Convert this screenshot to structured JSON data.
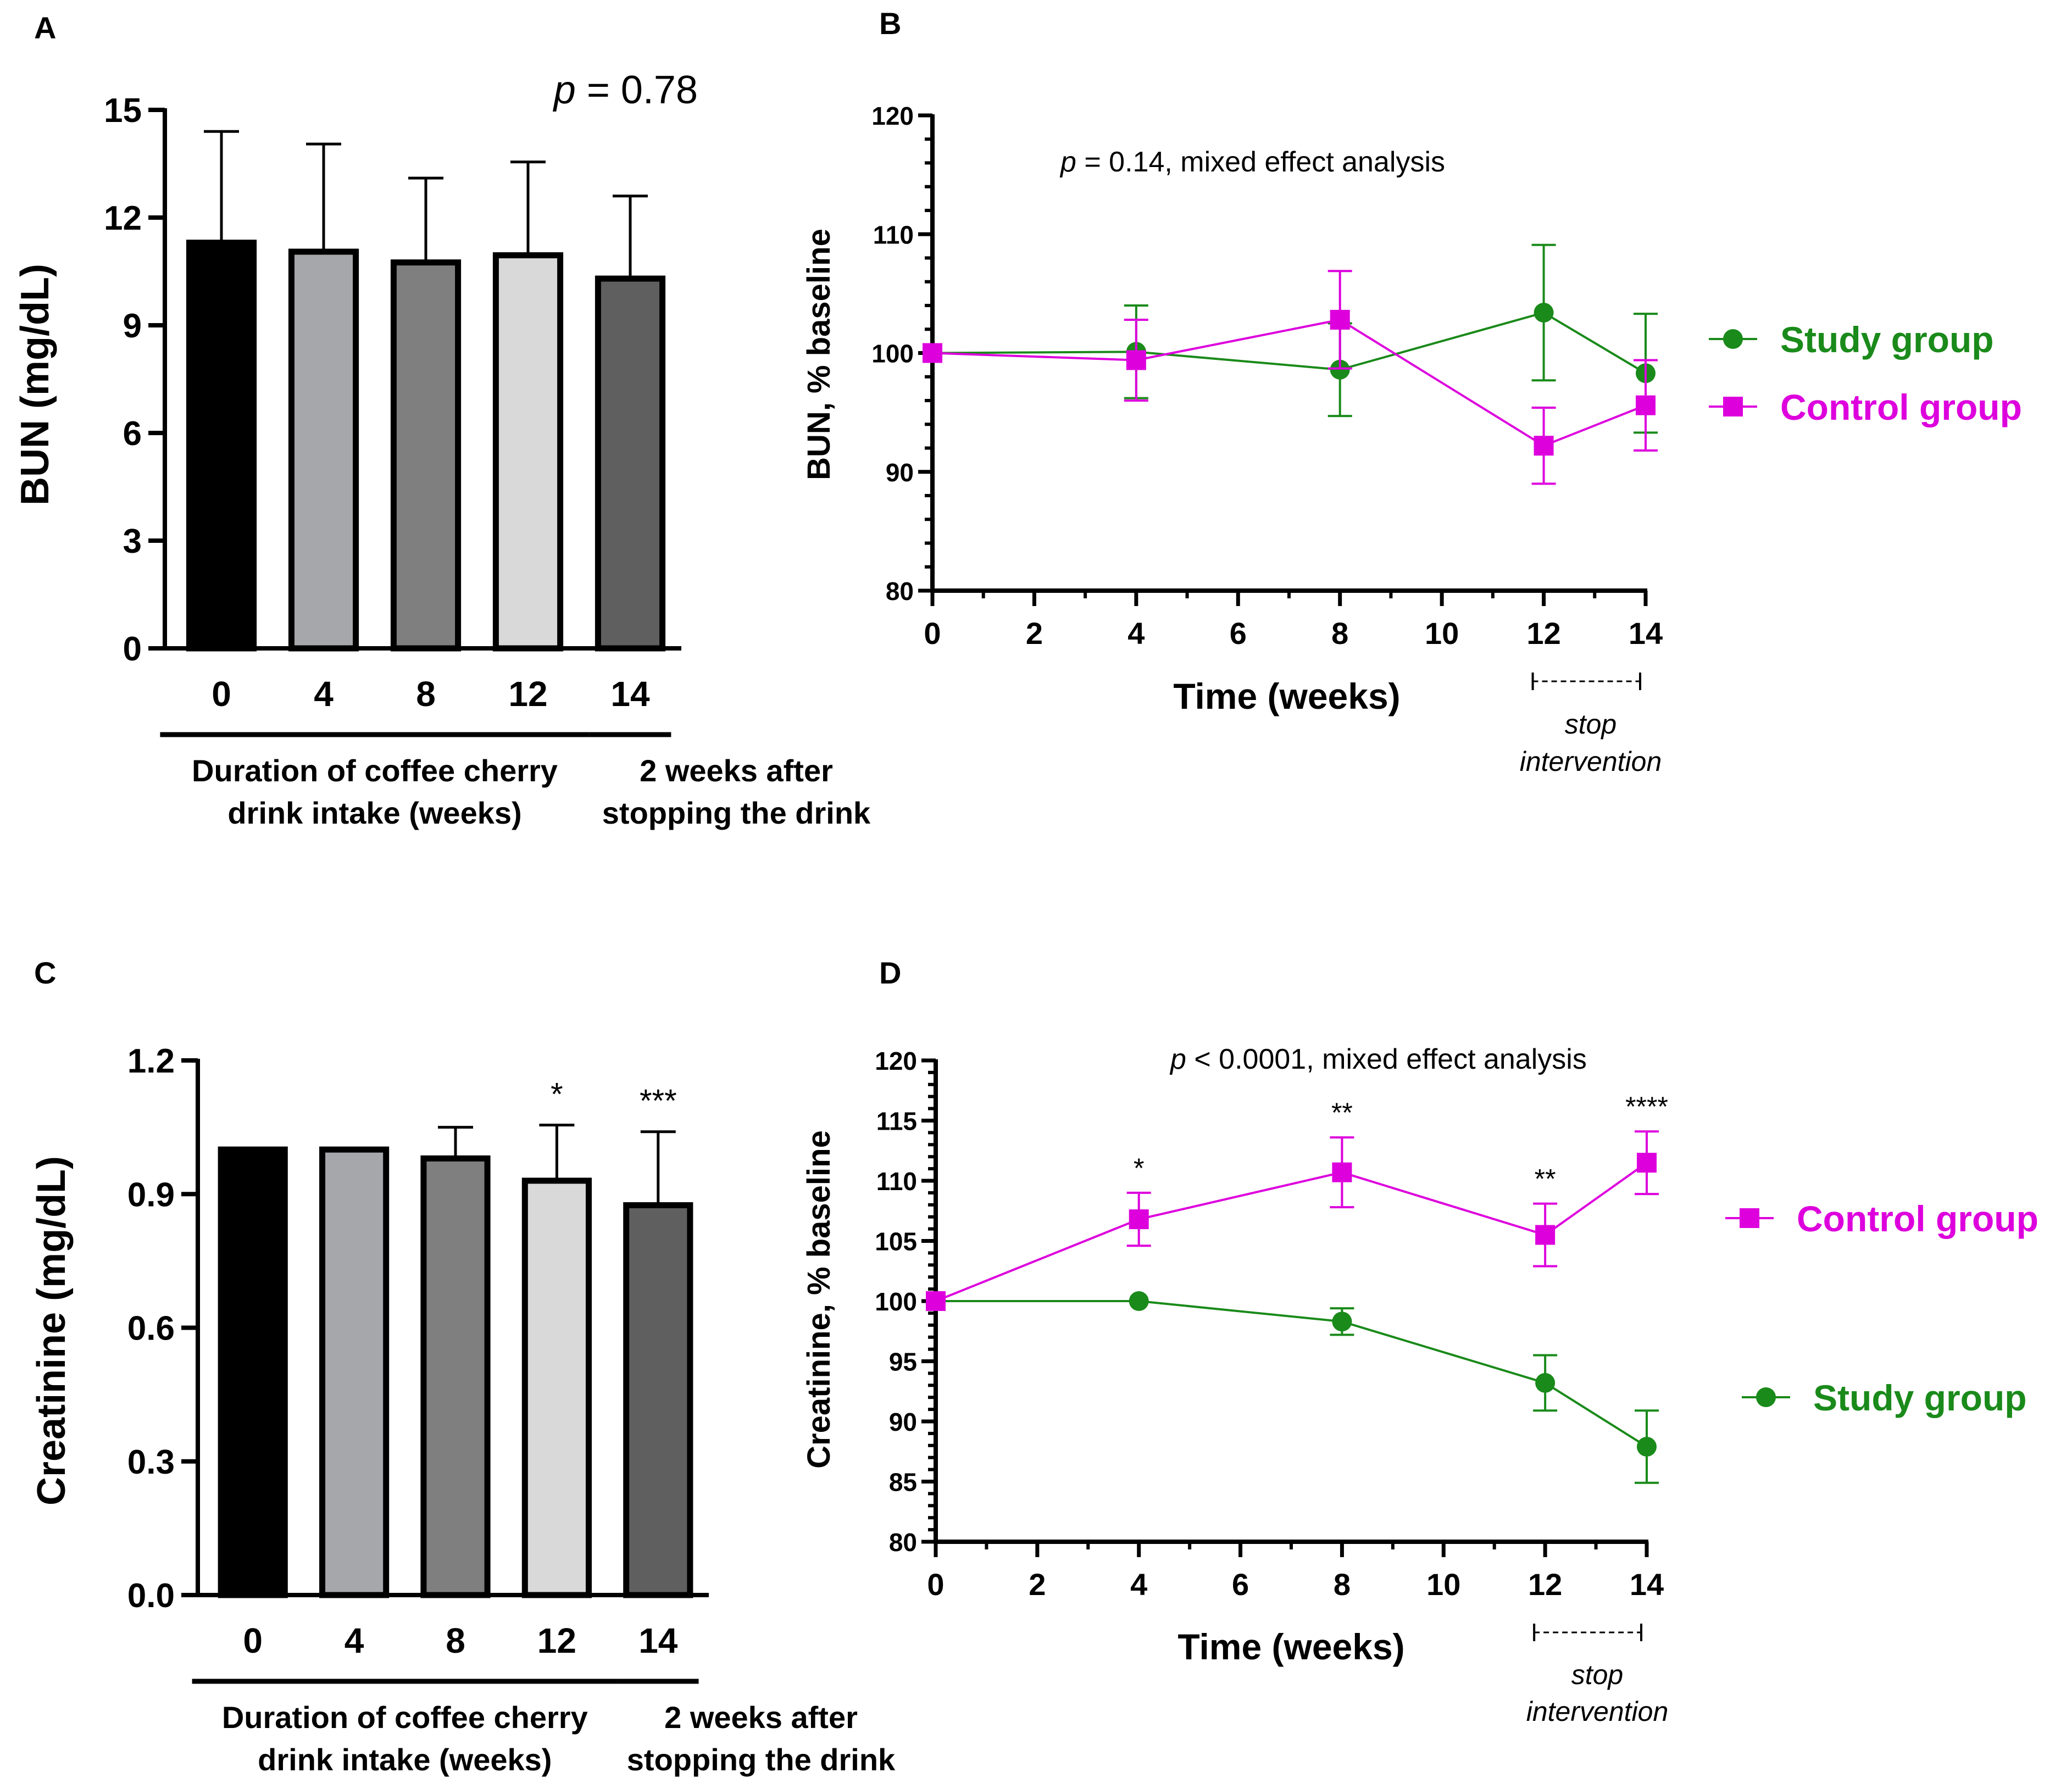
{
  "chart_data": [
    {
      "panel": "A",
      "type": "bar",
      "ylabel": "BUN (mg/dL)",
      "ylim": [
        0,
        15
      ],
      "yticks": [
        "0",
        "3",
        "6",
        "9",
        "12",
        "15"
      ],
      "categories": [
        "0",
        "4",
        "8",
        "12",
        "14"
      ],
      "values": [
        11.3,
        11.05,
        10.75,
        10.95,
        10.3
      ],
      "errors": [
        3.1,
        3.0,
        2.35,
        2.6,
        2.3
      ],
      "bar_colors": [
        "#000000",
        "#a6a7aa",
        "#7f7f7f",
        "#d9d9d9",
        "#5f5f5f"
      ],
      "stars": [
        "",
        "",
        "",
        "",
        ""
      ],
      "stat_prefix": "p",
      "stat_text": " = 0.78",
      "group_labels": [
        {
          "line1": "Duration of coffee cherry",
          "line2": "drink intake (weeks)"
        },
        {
          "line1": "2 weeks after",
          "line2": "stopping the drink"
        }
      ]
    },
    {
      "panel": "B",
      "type": "line",
      "xlabel": "Time (weeks)",
      "ylabel": "BUN, % baseline",
      "xlim": [
        0,
        14
      ],
      "ylim": [
        80,
        120
      ],
      "xticks": [
        "0",
        "2",
        "4",
        "6",
        "8",
        "10",
        "12",
        "14"
      ],
      "yticks": [
        "80",
        "90",
        "100",
        "110",
        "120"
      ],
      "stat_prefix": "p",
      "stat_text": " = 0.14, mixed effect analysis",
      "stop_label": [
        "stop",
        "intervention"
      ],
      "stars": [],
      "series": [
        {
          "name": "Study group",
          "color": "#1a8a1a",
          "marker": "circle",
          "x": [
            0,
            4,
            8,
            12,
            14
          ],
          "y": [
            100,
            100.1,
            98.6,
            103.4,
            98.3
          ],
          "err": [
            0,
            3.9,
            3.9,
            5.7,
            5.0
          ]
        },
        {
          "name": "Control group",
          "color": "#dd00dd",
          "marker": "square",
          "x": [
            0,
            4,
            8,
            12,
            14
          ],
          "y": [
            100,
            99.4,
            102.8,
            92.2,
            95.6
          ],
          "err": [
            0,
            3.4,
            4.1,
            3.2,
            3.8
          ]
        }
      ],
      "legend_order": [
        0,
        1
      ]
    },
    {
      "panel": "C",
      "type": "bar",
      "ylabel": "Creatinine (mg/dL)",
      "ylim": [
        0,
        1.2
      ],
      "yticks": [
        "0.0",
        "0.3",
        "0.6",
        "0.9",
        "1.2"
      ],
      "categories": [
        "0",
        "4",
        "8",
        "12",
        "14"
      ],
      "values": [
        1.0,
        1.0,
        0.98,
        0.93,
        0.875
      ],
      "errors": [
        0,
        0,
        0.07,
        0.125,
        0.165
      ],
      "bar_colors": [
        "#000000",
        "#a6a7aa",
        "#7f7f7f",
        "#d9d9d9",
        "#5f5f5f"
      ],
      "stars": [
        "",
        "",
        "",
        "*",
        "***"
      ],
      "stat_prefix": "",
      "stat_text": "",
      "group_labels": [
        {
          "line1": "Duration of coffee cherry",
          "line2": "drink intake (weeks)"
        },
        {
          "line1": "2 weeks after",
          "line2": "stopping the drink"
        }
      ]
    },
    {
      "panel": "D",
      "type": "line",
      "xlabel": "Time (weeks)",
      "ylabel": "Creatinine, % baseline",
      "xlim": [
        0,
        14
      ],
      "ylim": [
        80,
        120
      ],
      "xticks": [
        "0",
        "2",
        "4",
        "6",
        "8",
        "10",
        "12",
        "14"
      ],
      "yticks": [
        "80",
        "85",
        "90",
        "95",
        "100",
        "105",
        "110",
        "115",
        "120"
      ],
      "stat_prefix": "p",
      "stat_text": " < 0.0001, mixed effect analysis",
      "stop_label": [
        "stop",
        "intervention"
      ],
      "stars": [
        {
          "x": 4,
          "text": "*"
        },
        {
          "x": 8,
          "text": "**"
        },
        {
          "x": 12,
          "text": "**"
        },
        {
          "x": 14,
          "text": "****"
        }
      ],
      "series": [
        {
          "name": "Study group",
          "color": "#1a8a1a",
          "marker": "circle",
          "x": [
            0,
            4,
            8,
            12,
            14
          ],
          "y": [
            100,
            100,
            98.3,
            93.2,
            87.9
          ],
          "err": [
            0,
            0,
            1.1,
            2.3,
            3.0
          ]
        },
        {
          "name": "Control group",
          "color": "#dd00dd",
          "marker": "square",
          "x": [
            0,
            4,
            8,
            12,
            14
          ],
          "y": [
            100,
            106.8,
            110.7,
            105.5,
            111.5
          ],
          "err": [
            0,
            2.2,
            2.9,
            2.6,
            2.6
          ]
        }
      ],
      "legend_order": [
        1,
        0
      ]
    }
  ]
}
